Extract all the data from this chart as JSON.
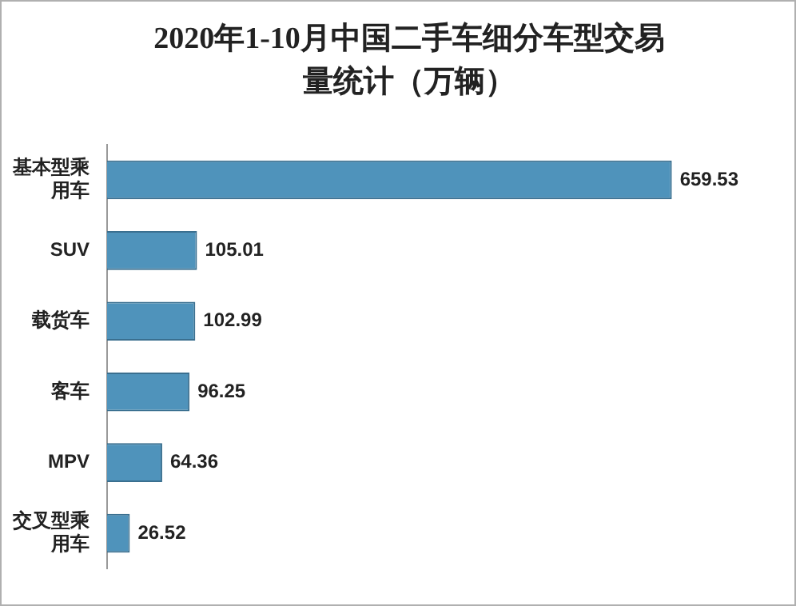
{
  "chart_data": {
    "type": "bar",
    "orientation": "horizontal",
    "title": "2020年1-10月中国二手车细分车型交易量统计（万辆）",
    "categories": [
      "基本型乘用车",
      "SUV",
      "载货车",
      "客车",
      "MPV",
      "交叉型乘用车"
    ],
    "values": [
      659.53,
      105.01,
      102.99,
      96.25,
      64.36,
      26.52
    ],
    "color": "#4f93bb",
    "data_labels": true
  }
}
